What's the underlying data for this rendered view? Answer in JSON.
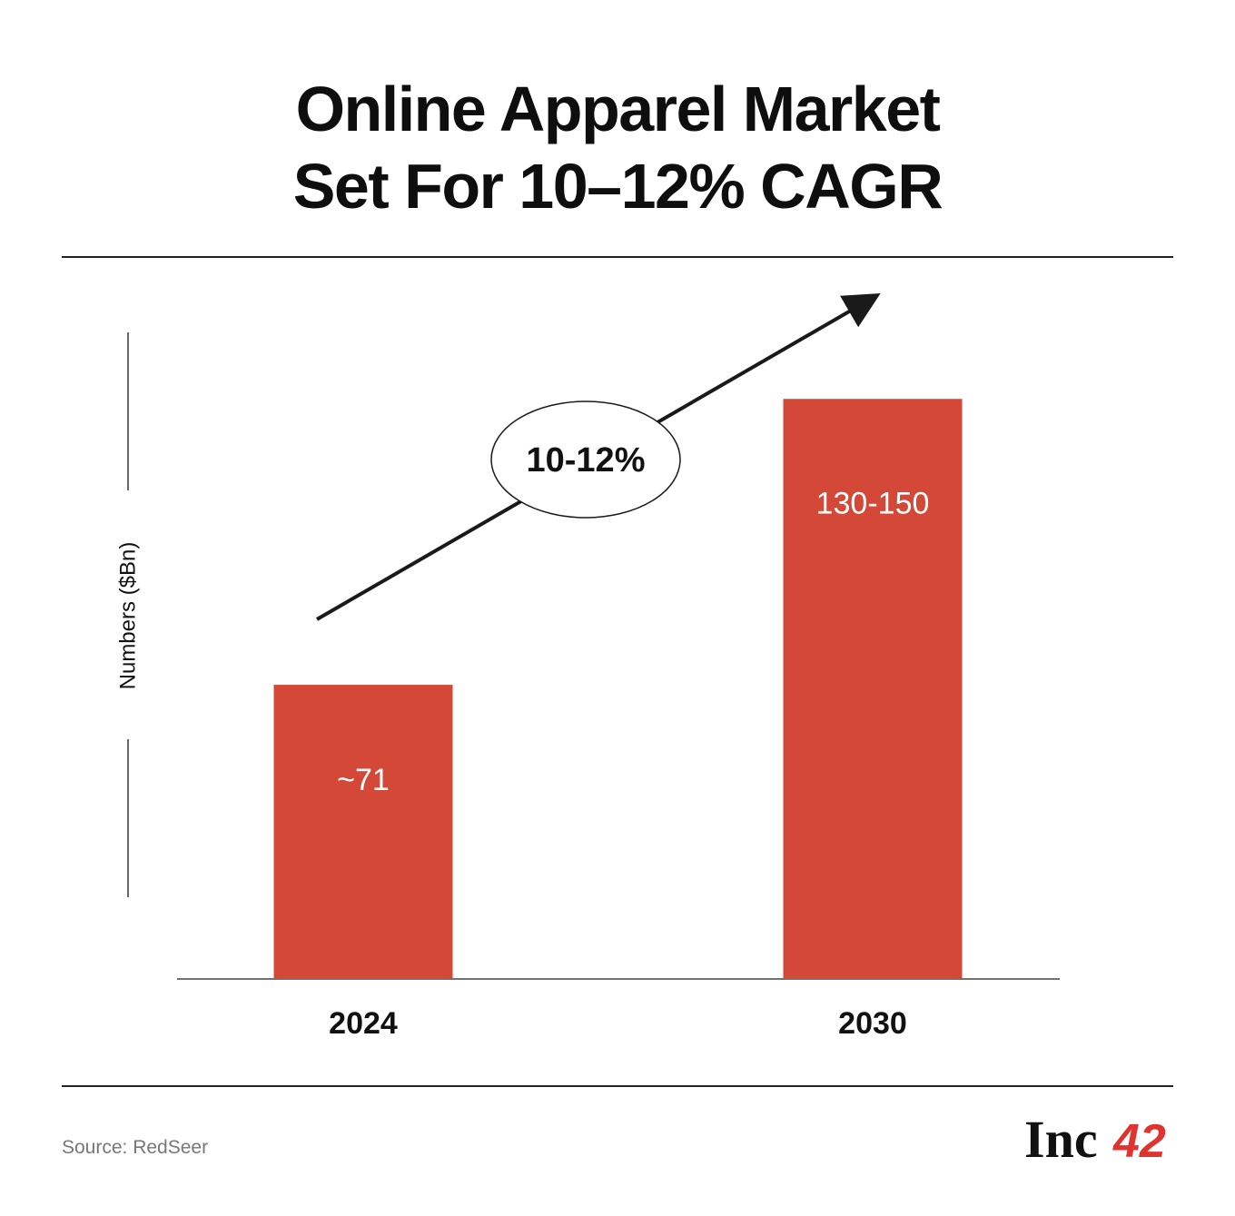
{
  "title_lines": [
    "Online Apparel Market",
    "Set For 10–12% CAGR"
  ],
  "source": "Source: RedSeer",
  "logo": {
    "text": "Inc",
    "number": "42"
  },
  "colors": {
    "bar": "#d44837",
    "text": "#111111",
    "rule": "#222222",
    "source": "#777777",
    "logo_accent": "#e0322f"
  },
  "chart_data": {
    "type": "bar",
    "categories": [
      "2024",
      "2030"
    ],
    "values": [
      71,
      140
    ],
    "value_labels": [
      "~71",
      "130-150"
    ],
    "ylabel": "Numbers ($Bn)",
    "ylim": [
      0,
      160
    ],
    "annotation": {
      "text": "10-12%",
      "kind": "growth-arrow"
    },
    "grid": false
  }
}
